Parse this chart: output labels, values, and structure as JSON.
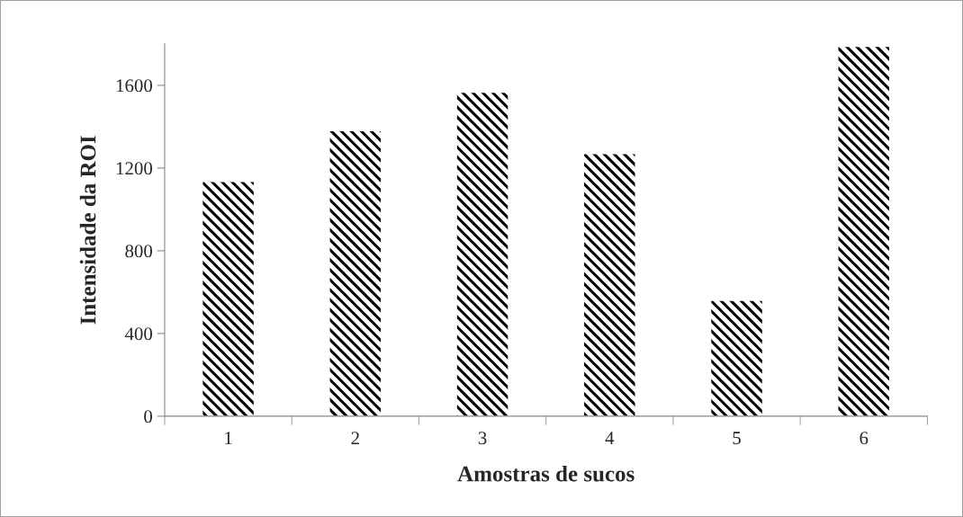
{
  "chart_data": {
    "type": "bar",
    "xlabel": "Amostras de sucos",
    "ylabel": "Intensidade da ROI",
    "categories": [
      "1",
      "2",
      "3",
      "4",
      "5",
      "6"
    ],
    "values": [
      1132,
      1378,
      1564,
      1267,
      557,
      1785
    ],
    "color": "#000000",
    "ylim": [
      0,
      1800
    ],
    "yticks": [
      0,
      400,
      800,
      1200,
      1600
    ],
    "grid": false
  }
}
